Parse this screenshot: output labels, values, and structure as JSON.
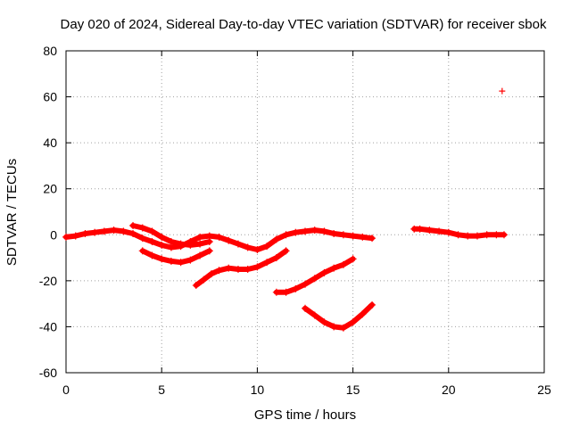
{
  "chart_data": {
    "type": "scatter",
    "title": "Day 020 of 2024, Sidereal Day-to-day VTEC variation (SDTVAR) for receiver sbok",
    "xlabel": "GPS time / hours",
    "ylabel": "SDTVAR / TECUs",
    "xlim": [
      0,
      25
    ],
    "ylim": [
      -60,
      80
    ],
    "xticks": [
      0,
      5,
      10,
      15,
      20,
      25
    ],
    "yticks": [
      -60,
      -40,
      -20,
      0,
      20,
      40,
      60,
      80
    ],
    "xtick_labels": [
      "0",
      "5",
      "10",
      "15",
      "20",
      "25"
    ],
    "ytick_labels": [
      "-60",
      "-40",
      "-20",
      "0",
      "20",
      "40",
      "60",
      "80"
    ],
    "grid": true,
    "marker": "+",
    "color": "#ff0000",
    "series": [
      {
        "name": "track-1",
        "x": [
          0.0,
          0.5,
          1.0,
          1.5,
          2.0,
          2.5,
          3.0,
          3.5,
          4.0,
          4.5,
          5.0,
          5.5,
          6.0,
          6.5,
          7.0,
          7.5,
          8.0,
          8.5,
          9.0,
          9.5,
          10.0,
          10.5,
          11.0,
          11.5,
          12.0,
          12.5,
          13.0,
          13.5,
          14.0,
          14.5,
          15.0,
          15.5,
          16.0
        ],
        "y": [
          -1,
          -0.5,
          0.5,
          1,
          1.5,
          2,
          1.5,
          0.5,
          -1.5,
          -3,
          -4.5,
          -5.5,
          -5,
          -3,
          -1,
          -0.5,
          -1,
          -2.5,
          -4,
          -5.5,
          -6.5,
          -5,
          -2,
          0,
          1,
          1.5,
          2,
          1.5,
          0.5,
          0,
          -0.5,
          -1,
          -1.5
        ]
      },
      {
        "name": "track-2",
        "x": [
          3.5,
          4.0,
          4.5,
          5.0,
          5.5,
          6.0,
          6.5,
          7.0,
          7.5
        ],
        "y": [
          4,
          3,
          1.5,
          -1,
          -3,
          -4,
          -4.5,
          -4,
          -3
        ]
      },
      {
        "name": "track-3",
        "x": [
          4.0,
          4.5,
          5.0,
          5.5,
          6.0,
          6.5,
          7.0,
          7.5
        ],
        "y": [
          -7,
          -9,
          -10.5,
          -11.5,
          -12,
          -11,
          -9,
          -7
        ]
      },
      {
        "name": "track-4",
        "x": [
          6.8,
          7.2,
          7.6,
          8.0,
          8.5,
          9.0,
          9.5,
          10.0,
          10.5,
          11.0,
          11.5
        ],
        "y": [
          -22,
          -19.5,
          -17,
          -15.5,
          -14.5,
          -15,
          -15,
          -14,
          -12,
          -10,
          -7
        ]
      },
      {
        "name": "track-5",
        "x": [
          11.0,
          11.5,
          12.0,
          12.5,
          13.0,
          13.5,
          14.0,
          14.5,
          15.0
        ],
        "y": [
          -25,
          -25,
          -23.5,
          -21.5,
          -19,
          -16.5,
          -14.5,
          -13,
          -10.5
        ]
      },
      {
        "name": "track-6",
        "x": [
          12.5,
          13.0,
          13.5,
          14.0,
          14.5,
          15.0,
          15.5,
          16.0
        ],
        "y": [
          -32,
          -35,
          -38,
          -40,
          -40.5,
          -38,
          -34.5,
          -30.5
        ]
      },
      {
        "name": "track-7",
        "x": [
          18.2,
          18.5,
          19.0,
          19.5,
          20.0,
          20.5,
          21.0,
          21.5,
          22.0,
          22.5,
          22.9
        ],
        "y": [
          2.5,
          2.5,
          2,
          1.5,
          1,
          0,
          -0.5,
          -0.5,
          0,
          0,
          0
        ]
      },
      {
        "name": "outlier",
        "x": [
          22.8
        ],
        "y": [
          62.5
        ]
      }
    ]
  }
}
